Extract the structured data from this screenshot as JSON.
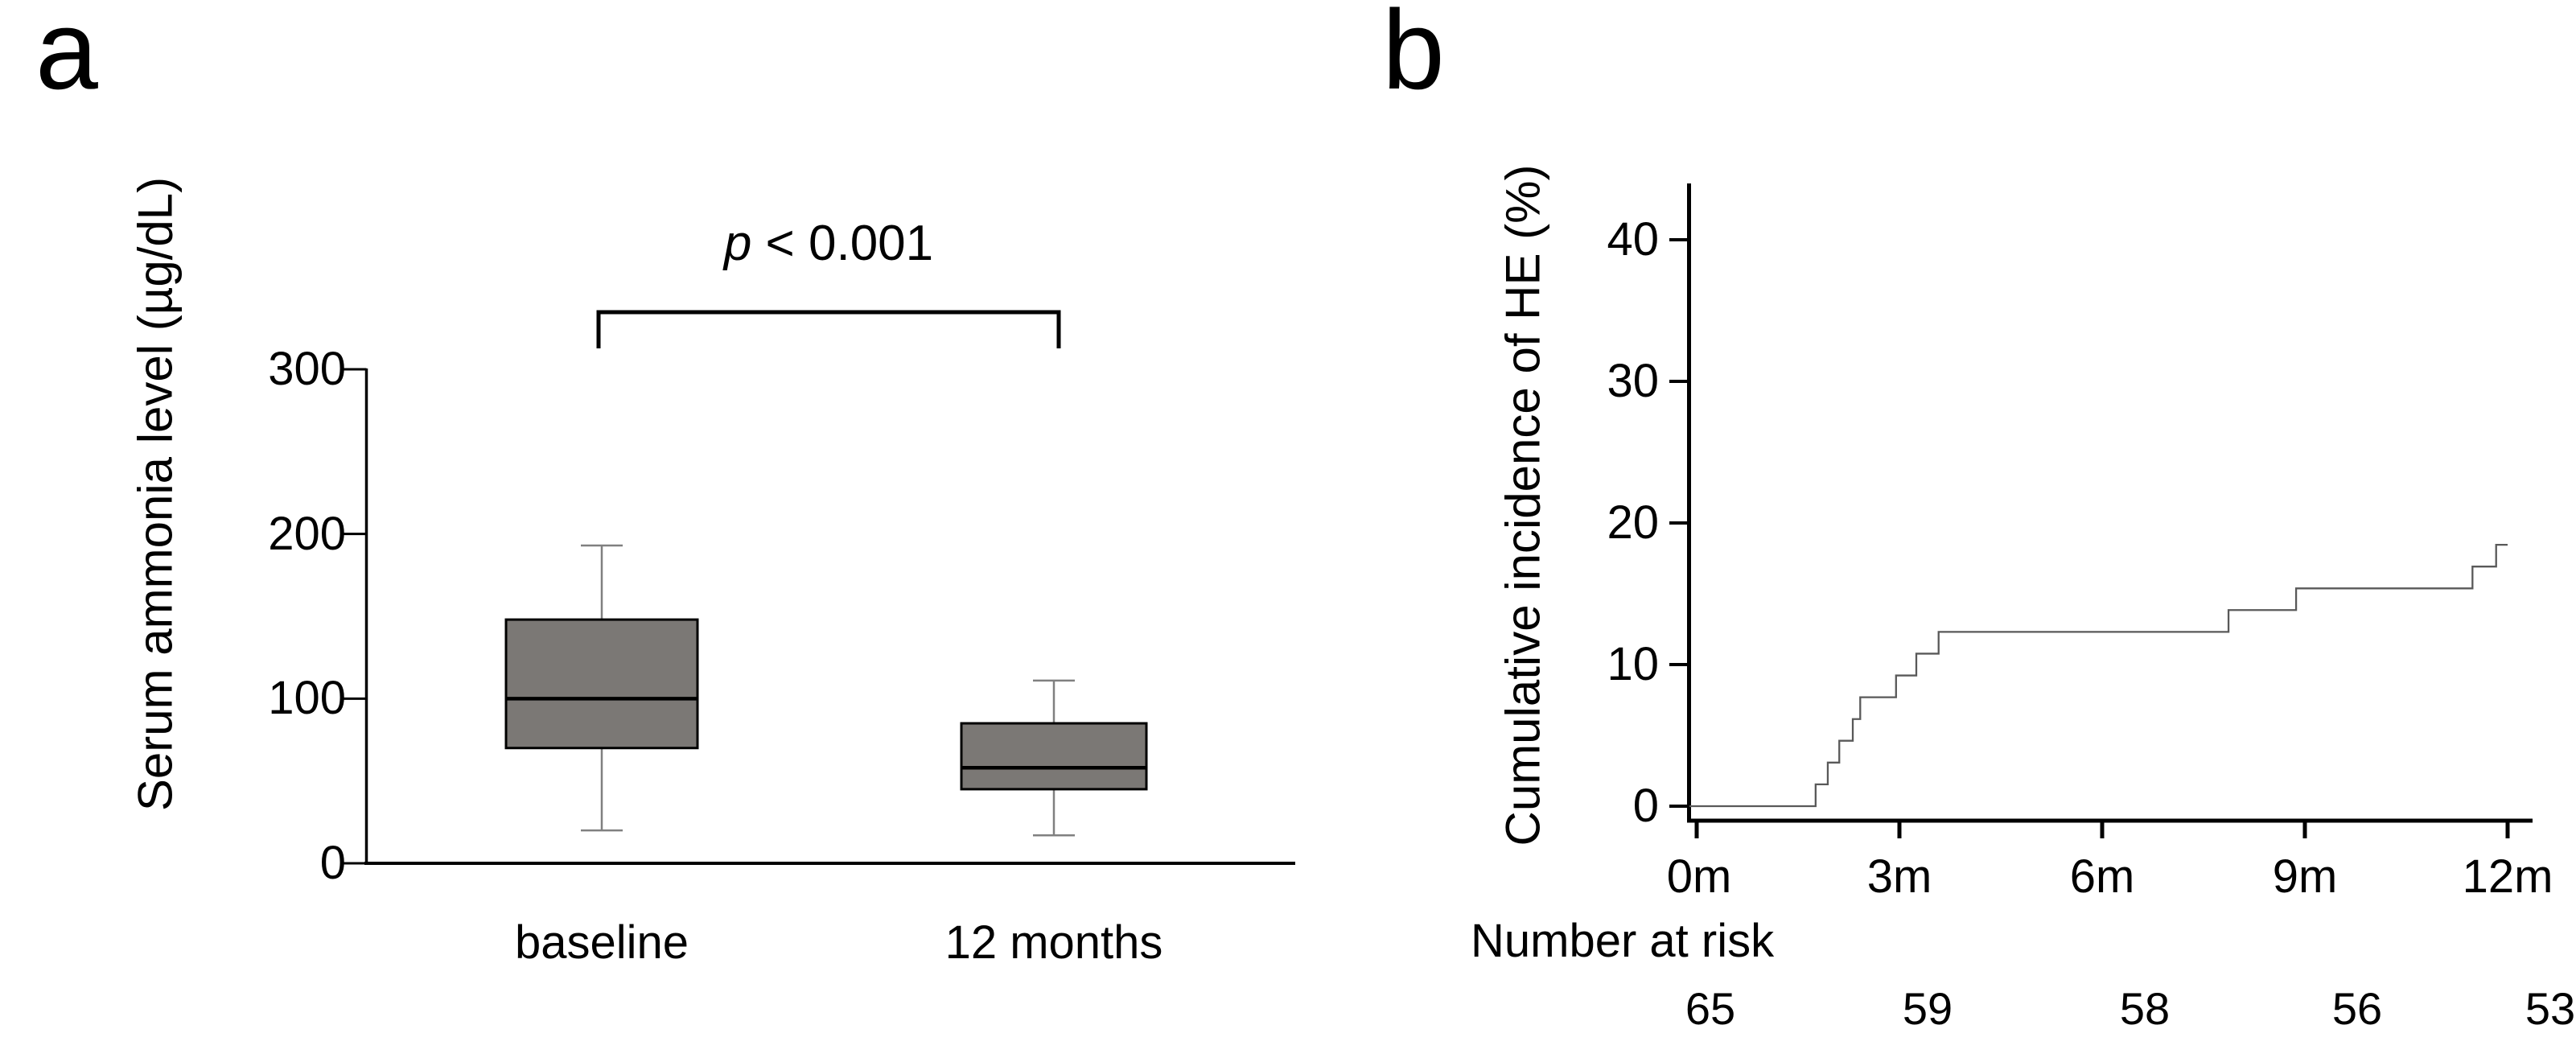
{
  "figure": {
    "panel_a_letter": "a",
    "panel_b_letter": "b"
  },
  "chart_data": [
    {
      "type": "box",
      "panel": "a",
      "title": "",
      "ylabel": "Serum ammonia level (µg/dL)",
      "xlabel": "",
      "ylim": [
        0,
        300
      ],
      "ytick_values": [
        0,
        100,
        200,
        300
      ],
      "yticks": [
        "0",
        "100",
        "200",
        "300"
      ],
      "grid": "off",
      "categories": [
        "baseline",
        "12 months"
      ],
      "series": [
        {
          "name": "baseline",
          "whisker_low": 20,
          "q1": 70,
          "median": 100,
          "q3": 148,
          "whisker_high": 193
        },
        {
          "name": "12 months",
          "whisker_low": 17,
          "q1": 45,
          "median": 58,
          "q3": 85,
          "whisker_high": 111
        }
      ],
      "annotation": {
        "italic": "p",
        "text": " < 0.001"
      },
      "colors": {
        "box_fill": "#7b7875",
        "box_border": "#000000",
        "median": "#000000",
        "whisker": "#808080",
        "axis": "#000000"
      }
    },
    {
      "type": "line",
      "step": true,
      "panel": "b",
      "title": "",
      "ylabel": "Cumulative incidence of HE (%)",
      "xlabel": "",
      "ylim": [
        0,
        44
      ],
      "xlim_months": [
        0,
        12.5
      ],
      "ytick_values": [
        0,
        10,
        20,
        30,
        40
      ],
      "yticks": [
        "0",
        "10",
        "20",
        "30",
        "40"
      ],
      "xtick_values": [
        0,
        3,
        6,
        9,
        12
      ],
      "xtick_labels": [
        "0m",
        "3m",
        "6m",
        "9m",
        "12m"
      ],
      "grid": "off",
      "legend": "none",
      "x": [
        0,
        1.76,
        1.94,
        2.11,
        2.31,
        2.42,
        2.95,
        3.25,
        3.58,
        7.87,
        8.87,
        11.48,
        11.83,
        12.0
      ],
      "y": [
        0,
        1.54,
        3.08,
        4.62,
        6.15,
        7.69,
        9.23,
        10.77,
        12.31,
        13.85,
        15.38,
        16.92,
        18.46,
        18.46
      ],
      "colors": {
        "line": "#595959",
        "axis": "#000000"
      },
      "number_at_risk": {
        "label": "Number at risk",
        "times": [
          "0m",
          "3m",
          "6m",
          "9m",
          "12m"
        ],
        "values": [
          "65",
          "59",
          "58",
          "56",
          "53"
        ]
      }
    }
  ]
}
